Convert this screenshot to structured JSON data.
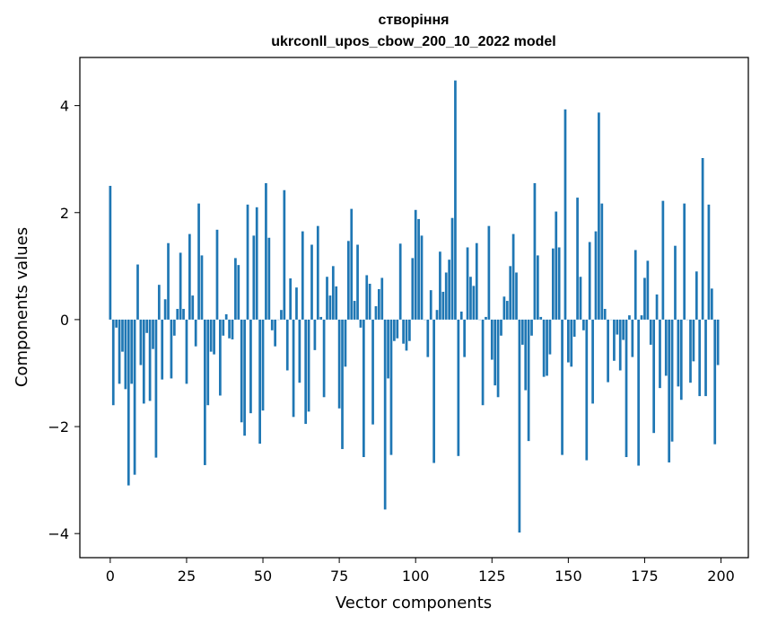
{
  "chart_data": {
    "type": "bar",
    "title": "створіння",
    "subtitle": "ukrconll_upos_cbow_200_10_2022 model",
    "xlabel": "Vector components",
    "ylabel": "Components values",
    "xlim": [
      -9.95,
      208.95
    ],
    "ylim": [
      -4.45,
      4.9
    ],
    "xticks": [
      0,
      25,
      50,
      75,
      100,
      125,
      150,
      175,
      200
    ],
    "xtick_labels": [
      "0",
      "25",
      "50",
      "75",
      "100",
      "125",
      "150",
      "175",
      "200"
    ],
    "yticks": [
      -4,
      -2,
      0,
      2,
      4
    ],
    "ytick_labels": [
      "−4",
      "−2",
      "0",
      "2",
      "4"
    ],
    "grid": false,
    "legend": "none",
    "colors": {
      "bar": "#1f77b4",
      "axes": "#000000",
      "background": "#ffffff"
    },
    "x": [
      0,
      1,
      2,
      3,
      4,
      5,
      6,
      7,
      8,
      9,
      10,
      11,
      12,
      13,
      14,
      15,
      16,
      17,
      18,
      19,
      20,
      21,
      22,
      23,
      24,
      25,
      26,
      27,
      28,
      29,
      30,
      31,
      32,
      33,
      34,
      35,
      36,
      37,
      38,
      39,
      40,
      41,
      42,
      43,
      44,
      45,
      46,
      47,
      48,
      49,
      50,
      51,
      52,
      53,
      54,
      55,
      56,
      57,
      58,
      59,
      60,
      61,
      62,
      63,
      64,
      65,
      66,
      67,
      68,
      69,
      70,
      71,
      72,
      73,
      74,
      75,
      76,
      77,
      78,
      79,
      80,
      81,
      82,
      83,
      84,
      85,
      86,
      87,
      88,
      89,
      90,
      91,
      92,
      93,
      94,
      95,
      96,
      97,
      98,
      99,
      100,
      101,
      102,
      103,
      104,
      105,
      106,
      107,
      108,
      109,
      110,
      111,
      112,
      113,
      114,
      115,
      116,
      117,
      118,
      119,
      120,
      121,
      122,
      123,
      124,
      125,
      126,
      127,
      128,
      129,
      130,
      131,
      132,
      133,
      134,
      135,
      136,
      137,
      138,
      139,
      140,
      141,
      142,
      143,
      144,
      145,
      146,
      147,
      148,
      149,
      150,
      151,
      152,
      153,
      154,
      155,
      156,
      157,
      158,
      159,
      160,
      161,
      162,
      163,
      164,
      165,
      166,
      167,
      168,
      169,
      170,
      171,
      172,
      173,
      174,
      175,
      176,
      177,
      178,
      179,
      180,
      181,
      182,
      183,
      184,
      185,
      186,
      187,
      188,
      189,
      190,
      191,
      192,
      193,
      194,
      195,
      196,
      197,
      198,
      199
    ],
    "values": [
      2.5,
      -1.6,
      -0.15,
      -1.2,
      -0.6,
      -1.3,
      -3.1,
      -1.2,
      -2.9,
      1.03,
      -0.85,
      -1.57,
      -0.25,
      -1.52,
      -0.55,
      -2.58,
      0.65,
      -1.12,
      0.38,
      1.43,
      -1.1,
      -0.3,
      0.2,
      1.25,
      0.2,
      -1.2,
      1.6,
      0.45,
      -0.5,
      2.17,
      1.2,
      -2.72,
      -1.6,
      -0.6,
      -0.65,
      1.68,
      -1.42,
      -0.3,
      0.1,
      -0.35,
      -0.37,
      1.15,
      1.02,
      -1.92,
      -2.17,
      2.15,
      -1.75,
      1.57,
      2.1,
      -2.32,
      -1.7,
      2.55,
      1.53,
      -0.2,
      -0.5,
      0.0,
      0.18,
      2.42,
      -0.95,
      0.77,
      -1.82,
      0.6,
      -1.18,
      1.65,
      -1.95,
      -1.72,
      1.4,
      -0.57,
      1.75,
      0.05,
      -1.45,
      0.8,
      0.45,
      1.0,
      0.62,
      -1.66,
      -2.42,
      -0.88,
      1.47,
      2.07,
      0.35,
      1.4,
      -0.15,
      -2.57,
      0.83,
      0.67,
      -1.96,
      0.25,
      0.57,
      0.78,
      -3.55,
      -1.1,
      -2.53,
      -0.4,
      -0.35,
      1.42,
      -0.45,
      -0.58,
      -0.4,
      1.15,
      2.05,
      1.88,
      1.57,
      0.0,
      -0.7,
      0.55,
      -2.68,
      0.18,
      1.27,
      0.52,
      0.88,
      1.12,
      1.9,
      4.47,
      -2.55,
      0.15,
      -0.7,
      1.35,
      0.8,
      0.63,
      1.43,
      0.0,
      -1.6,
      0.05,
      1.75,
      -0.75,
      -1.23,
      -1.45,
      -0.3,
      0.43,
      0.35,
      1.0,
      1.6,
      0.88,
      -3.98,
      -0.47,
      -1.32,
      -2.27,
      -0.3,
      2.55,
      1.2,
      0.05,
      -1.07,
      -1.05,
      -0.65,
      1.33,
      2.02,
      1.35,
      -2.53,
      3.93,
      -0.8,
      -0.88,
      -0.32,
      2.28,
      0.8,
      -0.2,
      -2.63,
      1.45,
      -1.57,
      1.65,
      3.87,
      2.17,
      0.2,
      -1.17,
      0.0,
      -0.77,
      -0.28,
      -0.95,
      -0.38,
      -2.57,
      0.08,
      -0.7,
      1.3,
      -2.73,
      0.08,
      0.78,
      1.1,
      -0.47,
      -2.12,
      0.47,
      -1.28,
      2.22,
      -1.05,
      -2.67,
      -2.28,
      1.38,
      -1.25,
      -1.5,
      2.17,
      0.0,
      -1.18,
      -0.78,
      0.9,
      -1.43,
      3.02,
      -1.43,
      2.15,
      0.58,
      -2.33,
      -0.85
    ]
  }
}
